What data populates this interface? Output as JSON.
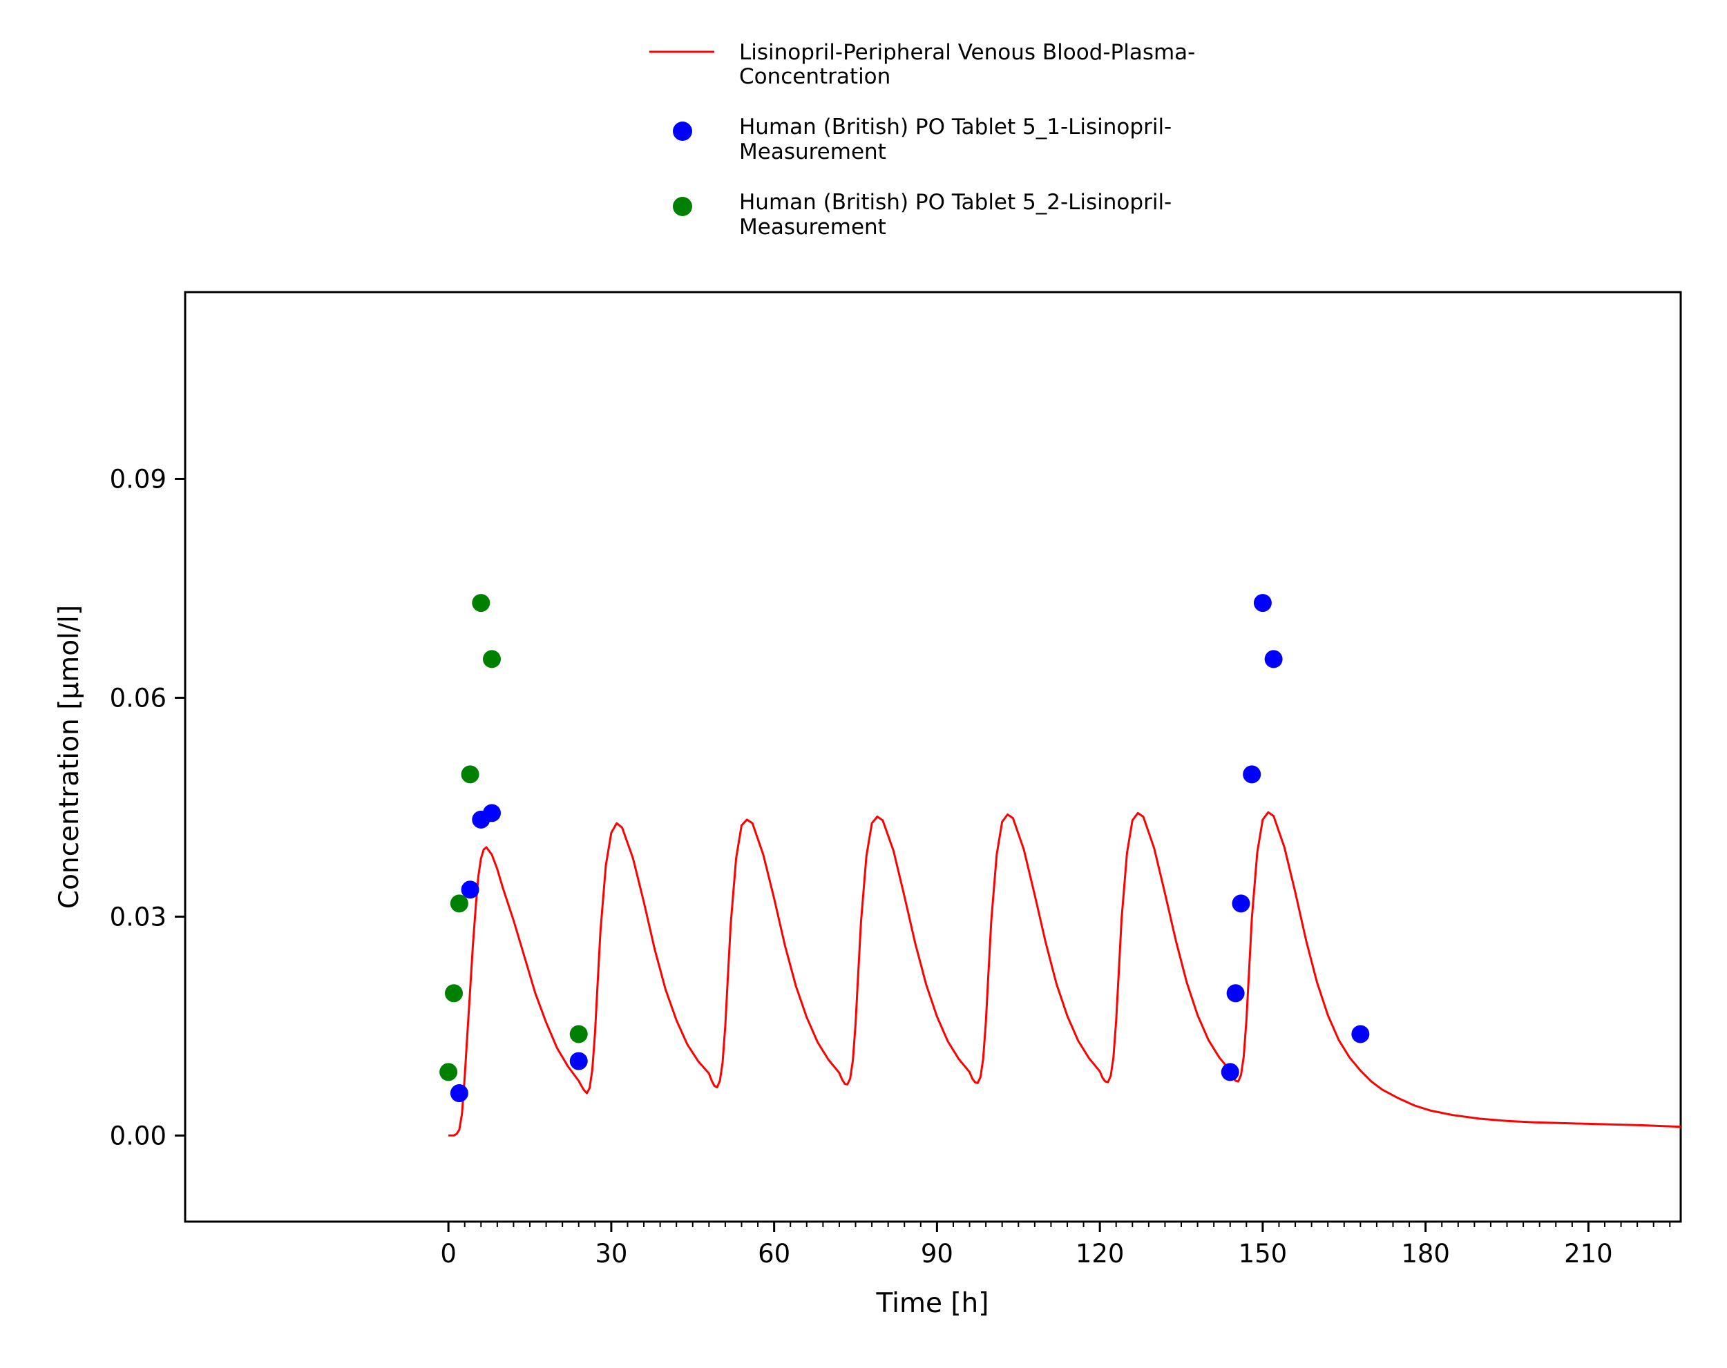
{
  "chart_data": {
    "type": "line",
    "title": "",
    "xlabel": "Time [h]",
    "ylabel": "Concentration [µmol/l]",
    "xlim": [
      -48.5,
      227
    ],
    "ylim": [
      -0.0118,
      0.1156
    ],
    "x_ticks": [
      0,
      30,
      60,
      90,
      120,
      150,
      180,
      210
    ],
    "x_tick_labels": [
      "0",
      "30",
      "60",
      "90",
      "120",
      "150",
      "180",
      "210"
    ],
    "y_ticks": [
      0.0,
      0.03,
      0.06,
      0.09
    ],
    "y_tick_labels": [
      "0.00",
      "0.03",
      "0.06",
      "0.09"
    ],
    "grid": false,
    "legend_position": "top-center",
    "series": [
      {
        "name": "Lisinopril-Peripheral Venous Blood-Plasma-Concentration",
        "legend_lines": [
          "Lisinopril-Peripheral Venous Blood-Plasma-",
          "Concentration"
        ],
        "type": "line",
        "color": "#ff0000",
        "x": [
          0,
          1,
          1.5,
          2,
          2.5,
          3,
          3.5,
          4,
          4.5,
          5,
          5.5,
          6,
          6.5,
          7,
          8,
          9,
          10,
          12,
          14,
          16,
          18,
          20,
          22,
          24,
          24.5,
          25,
          25.5,
          26,
          26.5,
          27,
          27.5,
          28,
          29,
          30,
          31,
          32,
          34,
          36,
          38,
          40,
          42,
          44,
          46,
          48,
          48.5,
          49,
          49.5,
          50,
          50.5,
          51,
          51.5,
          52,
          53,
          54,
          55,
          56,
          58,
          60,
          62,
          64,
          66,
          68,
          70,
          72,
          72.5,
          73,
          73.5,
          74,
          74.5,
          75,
          75.5,
          76,
          77,
          78,
          79,
          80,
          82,
          84,
          86,
          88,
          90,
          92,
          94,
          96,
          96.5,
          97,
          97.5,
          98,
          98.5,
          99,
          99.5,
          100,
          101,
          102,
          103,
          104,
          106,
          108,
          110,
          112,
          114,
          116,
          118,
          120,
          120.5,
          121,
          121.5,
          122,
          122.5,
          123,
          123.5,
          124,
          125,
          126,
          127,
          128,
          130,
          132,
          134,
          136,
          138,
          140,
          142,
          144,
          144.5,
          145,
          145.5,
          146,
          146.5,
          147,
          147.5,
          148,
          149,
          150,
          151,
          152,
          154,
          156,
          158,
          160,
          162,
          164,
          166,
          168,
          170,
          172,
          175,
          178,
          181,
          185,
          190,
          195,
          200,
          210,
          220,
          227
        ],
        "y": [
          0.0,
          0.0,
          0.0002,
          0.0008,
          0.003,
          0.008,
          0.014,
          0.02,
          0.026,
          0.031,
          0.0355,
          0.038,
          0.0392,
          0.0395,
          0.0385,
          0.0365,
          0.034,
          0.0295,
          0.0245,
          0.0195,
          0.0155,
          0.012,
          0.0095,
          0.0075,
          0.0068,
          0.0062,
          0.0058,
          0.0065,
          0.009,
          0.014,
          0.021,
          0.028,
          0.037,
          0.0415,
          0.0428,
          0.0422,
          0.038,
          0.032,
          0.0255,
          0.02,
          0.0158,
          0.0125,
          0.0102,
          0.0085,
          0.0075,
          0.0068,
          0.0066,
          0.0075,
          0.01,
          0.015,
          0.022,
          0.029,
          0.038,
          0.0425,
          0.0433,
          0.0428,
          0.0385,
          0.0325,
          0.026,
          0.0205,
          0.0162,
          0.0128,
          0.0104,
          0.0086,
          0.0077,
          0.0071,
          0.007,
          0.0078,
          0.0103,
          0.0153,
          0.0223,
          0.0293,
          0.0383,
          0.0428,
          0.0437,
          0.0432,
          0.039,
          0.0328,
          0.0263,
          0.0207,
          0.0163,
          0.0129,
          0.0105,
          0.0087,
          0.0078,
          0.0073,
          0.0072,
          0.008,
          0.0105,
          0.0155,
          0.0225,
          0.0295,
          0.0385,
          0.043,
          0.044,
          0.0435,
          0.0392,
          0.033,
          0.0265,
          0.0208,
          0.0164,
          0.013,
          0.0106,
          0.0088,
          0.0079,
          0.0074,
          0.0073,
          0.0082,
          0.0107,
          0.0157,
          0.0227,
          0.0297,
          0.0387,
          0.0432,
          0.0442,
          0.0437,
          0.0394,
          0.0332,
          0.0267,
          0.021,
          0.0165,
          0.0131,
          0.0107,
          0.0089,
          0.008,
          0.0075,
          0.0074,
          0.0083,
          0.0108,
          0.0158,
          0.0228,
          0.0298,
          0.0388,
          0.0433,
          0.0443,
          0.0438,
          0.0395,
          0.0333,
          0.0267,
          0.021,
          0.0165,
          0.0131,
          0.0107,
          0.0089,
          0.0074,
          0.0063,
          0.0051,
          0.0041,
          0.0034,
          0.0028,
          0.0023,
          0.002,
          0.0018,
          0.0016,
          0.0014,
          0.0012
        ]
      },
      {
        "name": "Human (British) PO Tablet 5_1-Lisinopril-Measurement",
        "legend_lines": [
          "Human (British) PO Tablet 5_1-Lisinopril-",
          "Measurement"
        ],
        "type": "scatter",
        "color": "#0000ff",
        "x": [
          2,
          4,
          6,
          8,
          24,
          144,
          145,
          146,
          148,
          150,
          152,
          168
        ],
        "y": [
          0.0058,
          0.0337,
          0.0433,
          0.0442,
          0.0102,
          0.0087,
          0.0195,
          0.0318,
          0.0495,
          0.073,
          0.0653,
          0.0139
        ]
      },
      {
        "name": "Human (British) PO Tablet 5_2-Lisinopril-Measurement",
        "legend_lines": [
          "Human (British) PO Tablet 5_2-Lisinopril-",
          "Measurement"
        ],
        "type": "scatter",
        "color": "#008000",
        "x": [
          0,
          1,
          2,
          4,
          6,
          8,
          24
        ],
        "y": [
          0.0087,
          0.0195,
          0.0318,
          0.0495,
          0.073,
          0.0653,
          0.0139
        ]
      }
    ]
  }
}
